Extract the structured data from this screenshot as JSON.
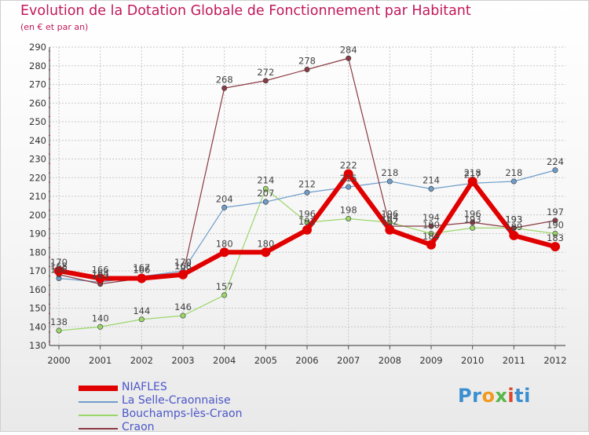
{
  "title": "Evolution de la Dotation Globale de Fonctionnement par Habitant",
  "subtitle": "(en € et par an)",
  "logo": {
    "p1": "Pr",
    "p2": "o",
    "p3": "x",
    "p4": "i",
    "p5": "ti"
  },
  "colors": {
    "NIAFLES": "#e00000",
    "La Selle-Craonnaise": "#6f9dca",
    "Bouchamps-lès-Craon": "#9bd66a",
    "Craon": "#8a3a44"
  },
  "chart_data": {
    "type": "line",
    "title": "Evolution de la Dotation Globale de Fonctionnement par Habitant",
    "subtitle": "(en € et par an)",
    "xlabel": "",
    "ylabel": "",
    "categories": [
      "2000",
      "2001",
      "2002",
      "2003",
      "2004",
      "2005",
      "2006",
      "2007",
      "2008",
      "2009",
      "2010",
      "2011",
      "2012"
    ],
    "yticks": [
      130,
      140,
      150,
      160,
      170,
      180,
      190,
      200,
      210,
      220,
      230,
      240,
      250,
      260,
      270,
      280,
      290
    ],
    "ylim": [
      130,
      290
    ],
    "grid": true,
    "legend_position": "bottom-left",
    "series": [
      {
        "name": "NIAFLES",
        "values": [
          170,
          166,
          166,
          168,
          180,
          180,
          192,
          222,
          192,
          184,
          218,
          189,
          183
        ]
      },
      {
        "name": "La Selle-Craonnaise",
        "values": [
          166,
          164,
          167,
          170,
          204,
          207,
          212,
          215,
          218,
          214,
          217,
          218,
          224
        ]
      },
      {
        "name": "Bouchamps-lès-Craon",
        "values": [
          138,
          140,
          144,
          146,
          157,
          214,
          196,
          198,
          196,
          190,
          193,
          193,
          190
        ]
      },
      {
        "name": "Craon",
        "values": [
          168,
          163,
          166,
          168,
          268,
          272,
          278,
          284,
          194,
          194,
          196,
          193,
          197
        ]
      }
    ]
  }
}
